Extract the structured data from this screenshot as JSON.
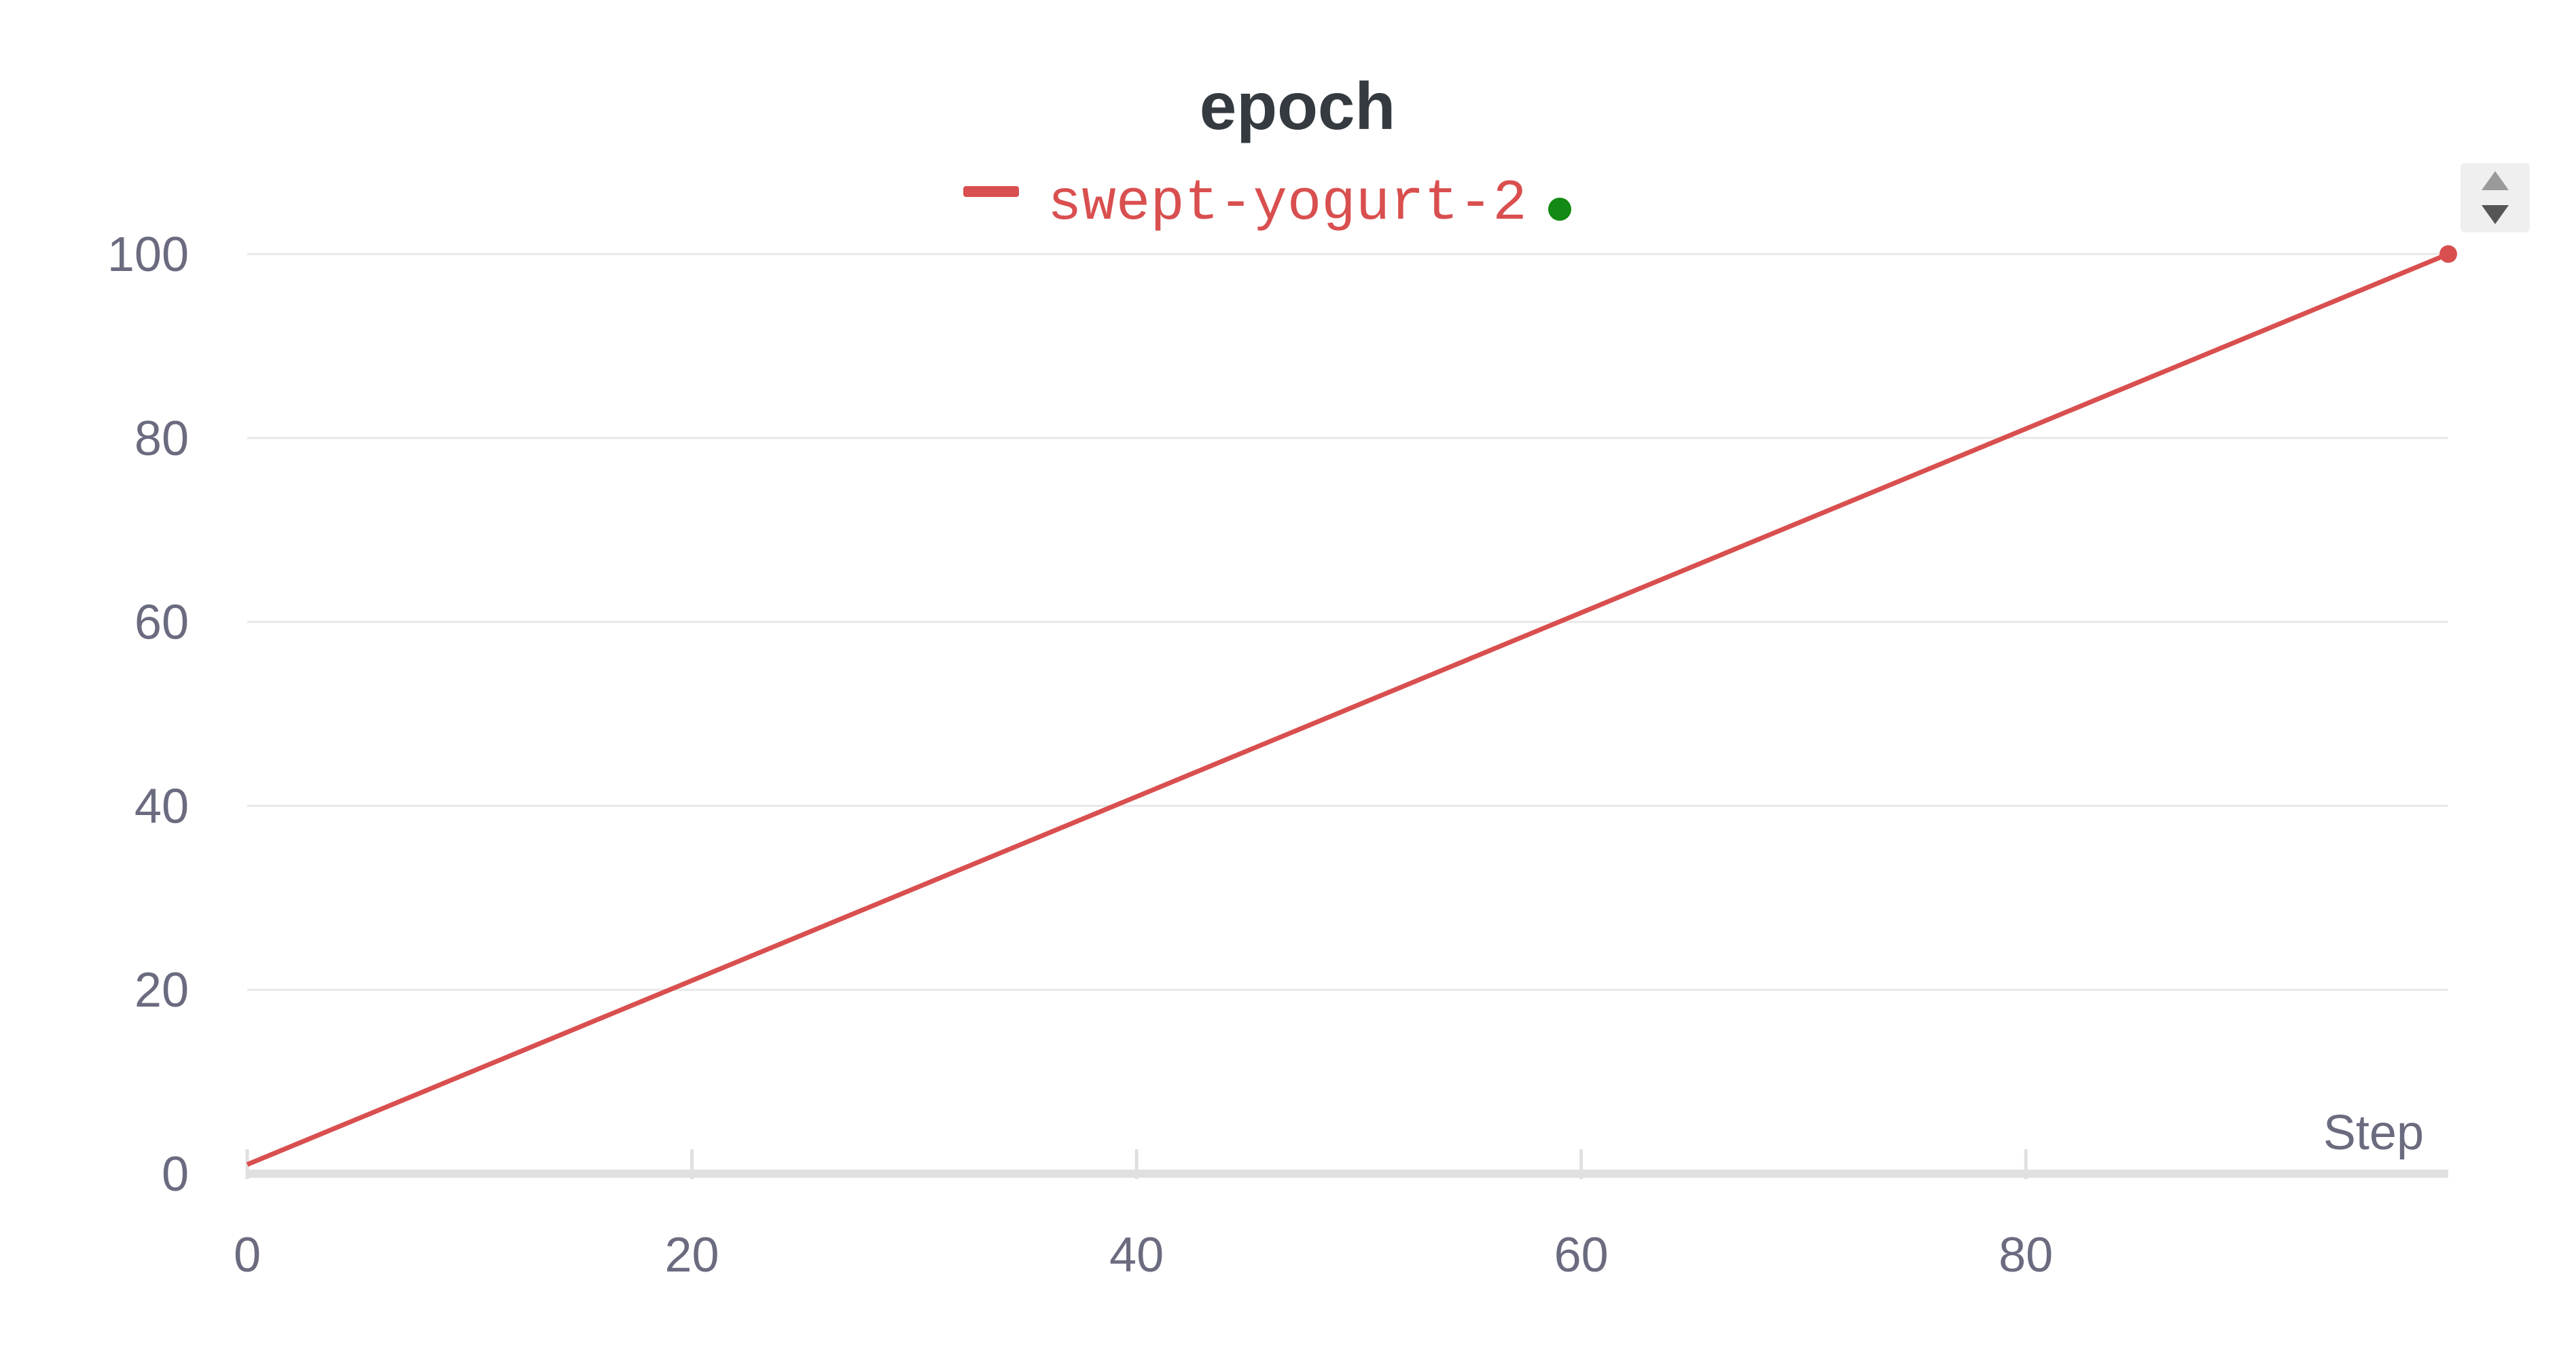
{
  "chart_data": {
    "type": "line",
    "title": "epoch",
    "xlabel": "Step",
    "ylabel": "",
    "xlim": [
      0,
      99
    ],
    "ylim": [
      0,
      100
    ],
    "x_ticks": [
      0,
      20,
      40,
      60,
      80
    ],
    "y_ticks": [
      0,
      20,
      40,
      60,
      80,
      100
    ],
    "grid": true,
    "legend_position": "top-center",
    "series": [
      {
        "name": "swept-yogurt-2",
        "color": "#d94f4f",
        "status_color": "#138a13",
        "x": [
          0,
          99
        ],
        "y": [
          1,
          100
        ]
      }
    ]
  }
}
